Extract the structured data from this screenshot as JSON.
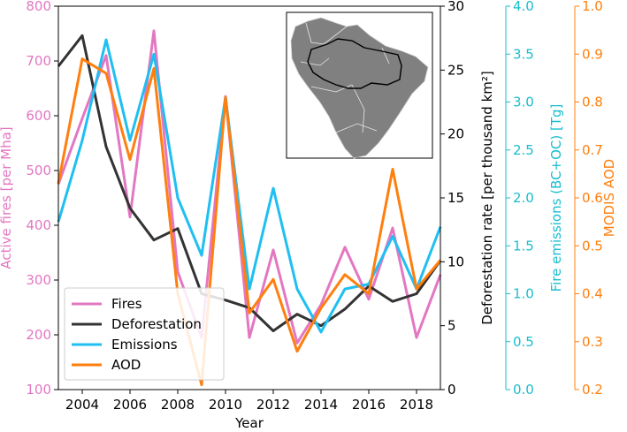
{
  "chart_data": {
    "type": "line",
    "xlabel": "Year",
    "x": [
      2003,
      2004,
      2005,
      2006,
      2007,
      2008,
      2009,
      2010,
      2011,
      2012,
      2013,
      2014,
      2015,
      2016,
      2017,
      2018,
      2019
    ],
    "x_ticks": [
      "2004",
      "2006",
      "2008",
      "2010",
      "2012",
      "2014",
      "2016",
      "2018"
    ],
    "xlim": [
      2003,
      2019
    ],
    "axes": [
      {
        "id": "fires",
        "label": "Active fires [per Mha]",
        "range": [
          100,
          800
        ],
        "ticks": [
          "100",
          "200",
          "300",
          "400",
          "500",
          "600",
          "700",
          "800"
        ],
        "color": "#e377c2",
        "side": "left"
      },
      {
        "id": "deforestation",
        "label": "Deforestation rate [per thousand km²]",
        "range": [
          0,
          30
        ],
        "ticks": [
          "0",
          "5",
          "10",
          "15",
          "20",
          "25",
          "30"
        ],
        "color": "#000000",
        "side": "right"
      },
      {
        "id": "emissions",
        "label": "Fire emissions (BC+OC) [Tg]",
        "range": [
          0.0,
          4.0
        ],
        "ticks": [
          "0.0",
          "0.5",
          "1.0",
          "1.5",
          "2.0",
          "2.5",
          "3.0",
          "3.5",
          "4.0"
        ],
        "color": "#17becf",
        "side": "right"
      },
      {
        "id": "aod",
        "label": "MODIS AOD",
        "range": [
          0.2,
          1.0
        ],
        "ticks": [
          "0.2",
          "0.3",
          "0.4",
          "0.5",
          "0.6",
          "0.7",
          "0.8",
          "0.9",
          "1.0"
        ],
        "color": "#ff7f0e",
        "side": "right"
      }
    ],
    "series": [
      {
        "name": "Fires",
        "axis": "fires",
        "color": "#e377c2",
        "values": [
          475,
          595,
          710,
          415,
          755,
          315,
          195,
          635,
          195,
          355,
          185,
          255,
          360,
          265,
          395,
          195,
          310
        ]
      },
      {
        "name": "Deforestation",
        "axis": "deforestation",
        "color": "#333333",
        "values": [
          25.3,
          27.7,
          19.0,
          14.2,
          11.7,
          12.6,
          7.5,
          7.0,
          6.4,
          4.6,
          5.9,
          5.0,
          6.3,
          8.1,
          6.9,
          7.5,
          10.1
        ]
      },
      {
        "name": "Emissions",
        "axis": "emissions",
        "color": "#1fbff2",
        "values": [
          1.75,
          2.6,
          3.65,
          2.6,
          3.5,
          2.0,
          1.4,
          3.05,
          1.05,
          2.1,
          1.05,
          0.6,
          1.05,
          1.1,
          1.6,
          1.05,
          1.7
        ]
      },
      {
        "name": "AOD",
        "axis": "aod",
        "color": "#ff7f0e",
        "values": [
          0.63,
          0.89,
          0.86,
          0.68,
          0.87,
          0.4,
          0.21,
          0.81,
          0.36,
          0.43,
          0.28,
          0.37,
          0.44,
          0.4,
          0.66,
          0.41,
          0.47
        ]
      }
    ],
    "legend": {
      "position": "bottom-left",
      "entries": [
        "Fires",
        "Deforestation",
        "Emissions",
        "AOD"
      ]
    },
    "inset": {
      "description": "map-of-south-america-with-amazon-outline"
    }
  }
}
